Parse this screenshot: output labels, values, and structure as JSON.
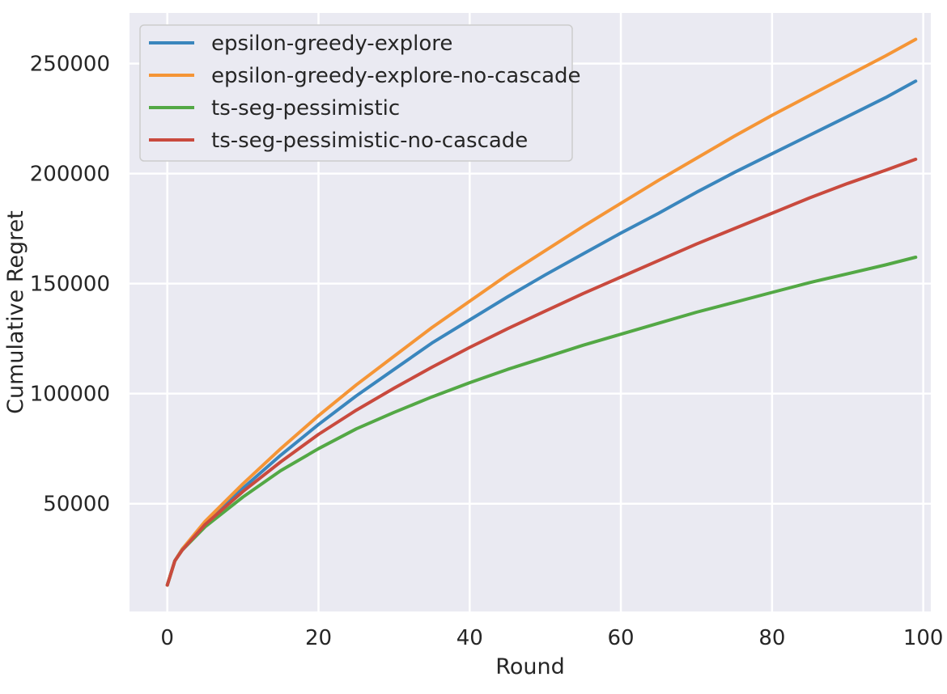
{
  "chart_data": {
    "type": "line",
    "title": "",
    "xlabel": "Round",
    "ylabel": "Cumulative Regret",
    "xlim": [
      -5,
      101
    ],
    "ylim": [
      1000,
      273000
    ],
    "xticks": [
      0,
      20,
      40,
      60,
      80,
      100
    ],
    "yticks": [
      50000,
      100000,
      150000,
      200000,
      250000
    ],
    "grid": true,
    "legend": "top-left",
    "style": {
      "background": "#eaeaf2",
      "grid_color": "#ffffff",
      "text_color": "#262626"
    },
    "series": [
      {
        "name": "epsilon-greedy-explore",
        "color": "#3a86bd",
        "x": [
          0,
          1,
          2,
          5,
          10,
          15,
          20,
          25,
          30,
          35,
          40,
          45,
          50,
          55,
          60,
          65,
          70,
          75,
          80,
          85,
          90,
          95,
          99
        ],
        "y": [
          13000,
          24000,
          29500,
          41000,
          57000,
          72000,
          86000,
          99000,
          111000,
          123000,
          133500,
          144000,
          154000,
          163500,
          173000,
          182000,
          191500,
          200500,
          209000,
          217500,
          226000,
          234500,
          242000
        ]
      },
      {
        "name": "epsilon-greedy-explore-no-cascade",
        "color": "#f59536",
        "x": [
          0,
          1,
          2,
          5,
          10,
          15,
          20,
          25,
          30,
          35,
          40,
          45,
          50,
          55,
          60,
          65,
          70,
          75,
          80,
          85,
          90,
          95,
          99
        ],
        "y": [
          13000,
          24000,
          29500,
          42000,
          59000,
          75000,
          90000,
          104000,
          117000,
          130000,
          142000,
          154000,
          165000,
          176000,
          186500,
          197000,
          207000,
          217000,
          226500,
          235500,
          244500,
          253500,
          261000
        ]
      },
      {
        "name": "ts-seg-pessimistic",
        "color": "#53a845",
        "x": [
          0,
          1,
          2,
          5,
          10,
          15,
          20,
          25,
          30,
          35,
          40,
          45,
          50,
          55,
          60,
          65,
          70,
          75,
          80,
          85,
          90,
          95,
          99
        ],
        "y": [
          13000,
          24000,
          29000,
          39500,
          53000,
          65000,
          75000,
          84000,
          91500,
          98500,
          105000,
          111000,
          116500,
          122000,
          127000,
          132000,
          137000,
          141500,
          146000,
          150500,
          154500,
          158500,
          162000
        ]
      },
      {
        "name": "ts-seg-pessimistic-no-cascade",
        "color": "#c94a3e",
        "x": [
          0,
          1,
          2,
          5,
          10,
          15,
          20,
          25,
          30,
          35,
          40,
          45,
          50,
          55,
          60,
          65,
          70,
          75,
          80,
          85,
          90,
          95,
          99
        ],
        "y": [
          13000,
          24000,
          29000,
          40500,
          55500,
          69000,
          81500,
          92500,
          102500,
          112000,
          121000,
          129500,
          137500,
          145500,
          153000,
          160500,
          168000,
          175000,
          182000,
          189000,
          195500,
          201500,
          206500
        ]
      }
    ]
  }
}
